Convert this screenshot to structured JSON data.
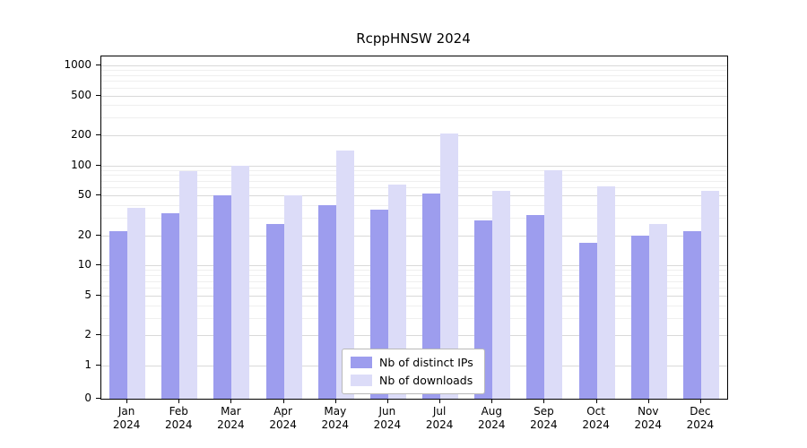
{
  "title": "RcppHNSW 2024",
  "chart_data": {
    "type": "bar",
    "title": "RcppHNSW 2024",
    "scale": "symlog",
    "grid": true,
    "legend_position": "lower center",
    "categories": [
      "Jan",
      "Feb",
      "Mar",
      "Apr",
      "May",
      "Jun",
      "Jul",
      "Aug",
      "Sep",
      "Oct",
      "Nov",
      "Dec"
    ],
    "x_year": "2024",
    "y_ticks": [
      0,
      1,
      2,
      5,
      10,
      20,
      50,
      100,
      200,
      500,
      1000
    ],
    "ylim": [
      0,
      1200
    ],
    "series": [
      {
        "name": "Nb of distinct IPs",
        "color": "#9d9dee",
        "values": [
          22,
          33,
          50,
          26,
          40,
          36,
          52,
          28,
          32,
          17,
          20,
          22
        ]
      },
      {
        "name": "Nb of downloads",
        "color": "#dcdcf8",
        "values": [
          38,
          88,
          100,
          50,
          140,
          65,
          210,
          56,
          90,
          62,
          26,
          56
        ]
      }
    ]
  }
}
